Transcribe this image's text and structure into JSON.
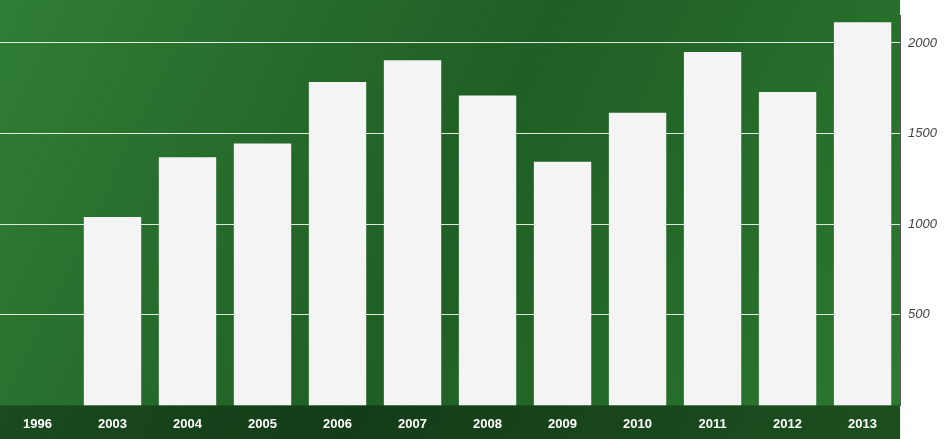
{
  "chart_data": {
    "type": "bar",
    "categories": [
      "1996",
      "2003",
      "2004",
      "2005",
      "2006",
      "2007",
      "2008",
      "2009",
      "2010",
      "2011",
      "2012",
      "2013"
    ],
    "values": [
      null,
      1040,
      1370,
      1445,
      1785,
      1905,
      1710,
      1345,
      1615,
      1950,
      1730,
      2115
    ],
    "color": "#f4f4f4",
    "ylim": [
      0,
      2150
    ],
    "yticks": [
      500,
      1000,
      1500,
      2000
    ],
    "grid": true
  }
}
